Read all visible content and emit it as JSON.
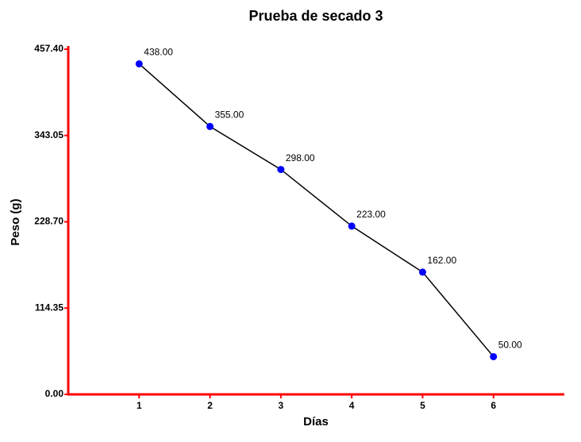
{
  "chart_data": {
    "type": "line",
    "title": "Prueba de secado 3",
    "x_label": "Días",
    "y_label": "Peso (g)",
    "x": [
      1,
      2,
      3,
      4,
      5,
      6
    ],
    "series": [
      {
        "color": "#0000ff",
        "line_color": "#000000",
        "values": [
          438,
          355,
          298,
          223,
          162,
          50
        ],
        "value_labels": [
          "438.00",
          "355.00",
          "298.00",
          "223.00",
          "162.00",
          "50.00"
        ]
      }
    ],
    "xlim": [
      0,
      7
    ],
    "xticks": [
      1,
      2,
      3,
      4,
      5,
      6
    ],
    "ylim": [
      0,
      457.4
    ],
    "yticks": [
      {
        "value": 0,
        "label": "0.00"
      },
      {
        "value": 114.35,
        "label": "114.35"
      },
      {
        "value": 228.7,
        "label": "228.70"
      },
      {
        "value": 343.05,
        "label": "343.05"
      },
      {
        "value": 457.4,
        "label": "457.40"
      }
    ],
    "axis_color": "#ff0000"
  }
}
